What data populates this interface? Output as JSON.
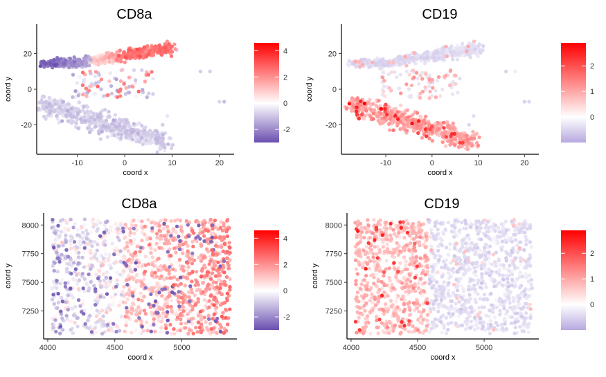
{
  "figure": {
    "layout": "2x2 grid of scatter plots"
  },
  "chart_data": [
    {
      "type": "scatter",
      "title": "CD8a",
      "xlabel": "coord x",
      "ylabel": "coord y",
      "xlim": [
        -18,
        22.5
      ],
      "ylim": [
        -35,
        35
      ],
      "xticks": [
        -10,
        0,
        10,
        20
      ],
      "yticks": [
        -20,
        0,
        20
      ],
      "colorbar": {
        "min": -3,
        "max": 4.6,
        "ticks": [
          -2,
          0,
          2,
          4
        ],
        "colors": [
          "#6a4fb0",
          "#ffffff",
          "#ff0000"
        ]
      },
      "grid": false,
      "legend_position": "right",
      "pattern": "umap_cd8a"
    },
    {
      "type": "scatter",
      "title": "CD19",
      "xlabel": "coord x",
      "ylabel": "coord y",
      "xlim": [
        -19,
        22.5
      ],
      "ylim": [
        -35,
        35
      ],
      "xticks": [
        -10,
        0,
        10,
        20
      ],
      "yticks": [
        -20,
        0,
        20
      ],
      "colorbar": {
        "min": -1,
        "max": 2.9,
        "ticks": [
          0,
          1,
          2
        ],
        "colors": [
          "#b7a8df",
          "#ffffff",
          "#ff0000"
        ]
      },
      "grid": false,
      "legend_position": "right",
      "pattern": "umap_cd19"
    },
    {
      "type": "scatter",
      "title": "CD8a",
      "xlabel": "coord x",
      "ylabel": "coord y",
      "xlim": [
        3990,
        5390
      ],
      "ylim": [
        7030,
        8080
      ],
      "xticks": [
        4000,
        4500,
        5000
      ],
      "yticks": [
        7250,
        7500,
        7750,
        8000
      ],
      "colorbar": {
        "min": -3,
        "max": 4.6,
        "ticks": [
          -2,
          0,
          2,
          4
        ],
        "colors": [
          "#6a4fb0",
          "#ffffff",
          "#ff0000"
        ]
      },
      "grid": false,
      "legend_position": "right",
      "pattern": "spatial_cd8a"
    },
    {
      "type": "scatter",
      "title": "CD19",
      "xlabel": "coord x",
      "ylabel": "coord y",
      "xlim": [
        3990,
        5390
      ],
      "ylim": [
        7030,
        8080
      ],
      "xticks": [
        4000,
        4500,
        5000
      ],
      "yticks": [
        7250,
        7500,
        7750,
        8000
      ],
      "colorbar": {
        "min": -1,
        "max": 2.9,
        "ticks": [
          0,
          1,
          2
        ],
        "colors": [
          "#b7a8df",
          "#ffffff",
          "#ff0000"
        ]
      },
      "grid": false,
      "legend_position": "right",
      "pattern": "spatial_cd19"
    }
  ]
}
